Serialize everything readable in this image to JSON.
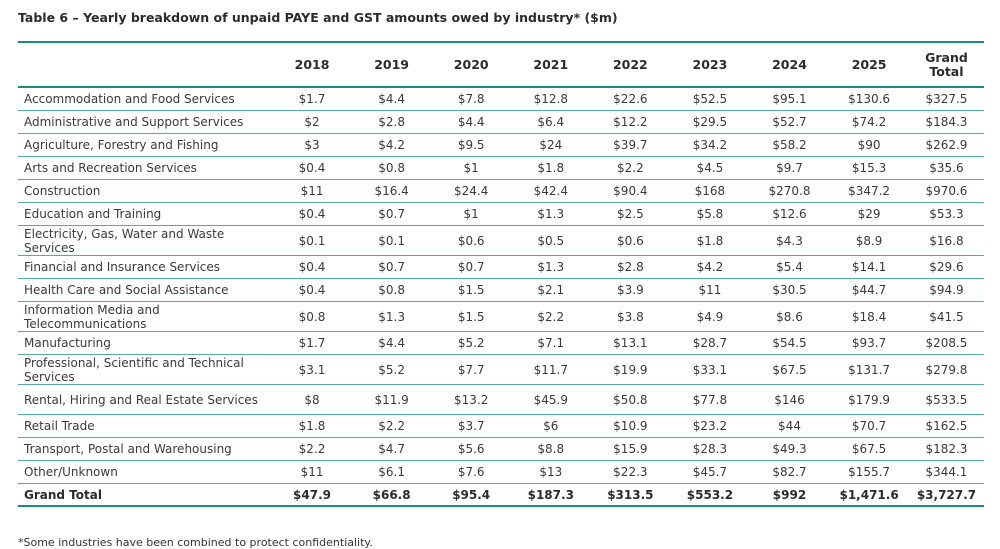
{
  "title": "Table 6 – Yearly breakdown of unpaid PAYE and GST amounts owed by industry* ($m)",
  "columns": [
    "2018",
    "2019",
    "2020",
    "2021",
    "2022",
    "2023",
    "2024",
    "2025",
    "Grand Total"
  ],
  "rows": [
    {
      "industry": "Accommodation and Food Services",
      "values": [
        "$1.7",
        "$4.4",
        "$7.8",
        "$12.8",
        "$22.6",
        "$52.5",
        "$95.1",
        "$130.6",
        "$327.5"
      ]
    },
    {
      "industry": "Administrative and Support Services",
      "values": [
        "$2",
        "$2.8",
        "$4.4",
        "$6.4",
        "$12.2",
        "$29.5",
        "$52.7",
        "$74.2",
        "$184.3"
      ]
    },
    {
      "industry": "Agriculture, Forestry and Fishing",
      "values": [
        "$3",
        "$4.2",
        "$9.5",
        "$24",
        "$39.7",
        "$34.2",
        "$58.2",
        "$90",
        "$262.9"
      ]
    },
    {
      "industry": "Arts and Recreation Services",
      "values": [
        "$0.4",
        "$0.8",
        "$1",
        "$1.8",
        "$2.2",
        "$4.5",
        "$9.7",
        "$15.3",
        "$35.6"
      ]
    },
    {
      "industry": "Construction",
      "values": [
        "$11",
        "$16.4",
        "$24.4",
        "$42.4",
        "$90.4",
        "$168",
        "$270.8",
        "$347.2",
        "$970.6"
      ]
    },
    {
      "industry": "Education and Training",
      "values": [
        "$0.4",
        "$0.7",
        "$1",
        "$1.3",
        "$2.5",
        "$5.8",
        "$12.6",
        "$29",
        "$53.3"
      ]
    },
    {
      "industry": "Electricity, Gas, Water and Waste Services",
      "values": [
        "$0.1",
        "$0.1",
        "$0.6",
        "$0.5",
        "$0.6",
        "$1.8",
        "$4.3",
        "$8.9",
        "$16.8"
      ]
    },
    {
      "industry": "Financial and Insurance Services",
      "values": [
        "$0.4",
        "$0.7",
        "$0.7",
        "$1.3",
        "$2.8",
        "$4.2",
        "$5.4",
        "$14.1",
        "$29.6"
      ]
    },
    {
      "industry": "Health Care and Social Assistance",
      "values": [
        "$0.4",
        "$0.8",
        "$1.5",
        "$2.1",
        "$3.9",
        "$11",
        "$30.5",
        "$44.7",
        "$94.9"
      ]
    },
    {
      "industry": "Information Media and Telecommunications",
      "values": [
        "$0.8",
        "$1.3",
        "$1.5",
        "$2.2",
        "$3.8",
        "$4.9",
        "$8.6",
        "$18.4",
        "$41.5"
      ]
    },
    {
      "industry": "Manufacturing",
      "values": [
        "$1.7",
        "$4.4",
        "$5.2",
        "$7.1",
        "$13.1",
        "$28.7",
        "$54.5",
        "$93.7",
        "$208.5"
      ]
    },
    {
      "industry": "Professional, Scientific and Technical Services",
      "values": [
        "$3.1",
        "$5.2",
        "$7.7",
        "$11.7",
        "$19.9",
        "$33.1",
        "$67.5",
        "$131.7",
        "$279.8"
      ]
    },
    {
      "industry": "Rental, Hiring and Real Estate Services",
      "values": [
        "$8",
        "$11.9",
        "$13.2",
        "$45.9",
        "$50.8",
        "$77.8",
        "$146",
        "$179.9",
        "$533.5"
      ]
    },
    {
      "industry": "Retail Trade",
      "values": [
        "$1.8",
        "$2.2",
        "$3.7",
        "$6",
        "$10.9",
        "$23.2",
        "$44",
        "$70.7",
        "$162.5"
      ]
    },
    {
      "industry": "Transport, Postal and Warehousing",
      "values": [
        "$2.2",
        "$4.7",
        "$5.6",
        "$8.8",
        "$15.9",
        "$28.3",
        "$49.3",
        "$67.5",
        "$182.3"
      ]
    },
    {
      "industry": "Other/Unknown",
      "values": [
        "$11",
        "$6.1",
        "$7.6",
        "$13",
        "$22.3",
        "$45.7",
        "$82.7",
        "$155.7",
        "$344.1"
      ]
    }
  ],
  "grand_total": {
    "label": "Grand Total",
    "values": [
      "$47.9",
      "$66.8",
      "$95.4",
      "$187.3",
      "$313.5",
      "$553.2",
      "$992",
      "$1,471.6",
      "$3,727.7"
    ]
  },
  "footnote": "*Some industries have been combined to protect confidentiality.",
  "colors": {
    "rule": "#1b8a84",
    "row_line": "#57a9a3"
  }
}
